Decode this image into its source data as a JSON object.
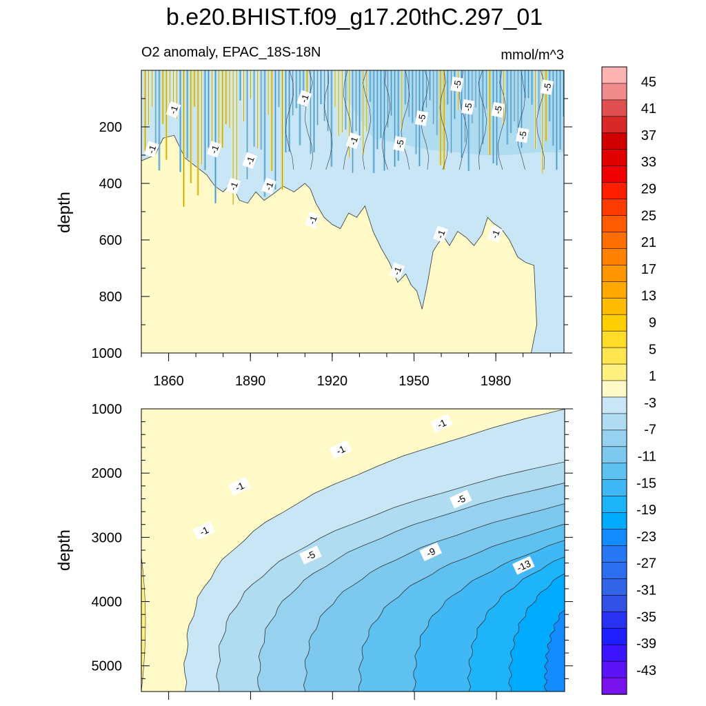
{
  "chart_data": {
    "type": "contour",
    "title": "b.e20.BHIST.f09_g17.20thC.297_01",
    "subtitle_left": "O2 anomaly, EPAC_18S-18N",
    "subtitle_right": "mmol/m^3",
    "colorbar": {
      "labels": [
        "45",
        "41",
        "37",
        "33",
        "29",
        "25",
        "21",
        "17",
        "13",
        "9",
        "5",
        "1",
        "-3",
        "-7",
        "-11",
        "-15",
        "-19",
        "-23",
        "-27",
        "-31",
        "-35",
        "-39",
        "-43"
      ],
      "colors": [
        "#ffb4b4",
        "#f08c8c",
        "#e05050",
        "#d82828",
        "#d00000",
        "#e00000",
        "#f00000",
        "#ff1e00",
        "#ff3c00",
        "#ff5a00",
        "#ff6e00",
        "#ff8200",
        "#ff9600",
        "#ffa800",
        "#ffbc00",
        "#ffce00",
        "#ffdc28",
        "#ffe650",
        "#fff080",
        "#fffac8",
        "#c8e6f5",
        "#b0dcf2",
        "#96d2f0",
        "#7cc8ee",
        "#5ec1f0",
        "#40b8f5",
        "#1eb4fa",
        "#00aaff",
        "#148cff",
        "#2878f5",
        "#2d6ef0",
        "#3264e6",
        "#3250e6",
        "#2832f0",
        "#1e1eff",
        "#3c14ff",
        "#5a14f5",
        "#7814eb"
      ]
    },
    "top_panel": {
      "ylabel": "depth",
      "y_ticks": [
        "200",
        "400",
        "600",
        "800",
        "1000"
      ],
      "x_ticks": [
        "1860",
        "1890",
        "1920",
        "1950",
        "1980"
      ],
      "ylim": [
        0,
        1000
      ],
      "xlim": [
        1850,
        2005
      ],
      "boundary_minus1": [
        [
          1850,
          320
        ],
        [
          1855,
          300
        ],
        [
          1858,
          240
        ],
        [
          1862,
          230
        ],
        [
          1866,
          310
        ],
        [
          1870,
          340
        ],
        [
          1874,
          370
        ],
        [
          1877,
          410
        ],
        [
          1880,
          430
        ],
        [
          1883,
          400
        ],
        [
          1886,
          460
        ],
        [
          1889,
          470
        ],
        [
          1892,
          430
        ],
        [
          1895,
          460
        ],
        [
          1898,
          440
        ],
        [
          1902,
          410
        ],
        [
          1906,
          430
        ],
        [
          1910,
          400
        ],
        [
          1912,
          420
        ],
        [
          1914,
          470
        ],
        [
          1917,
          520
        ],
        [
          1920,
          545
        ],
        [
          1923,
          560
        ],
        [
          1926,
          505
        ],
        [
          1929,
          520
        ],
        [
          1932,
          480
        ],
        [
          1935,
          570
        ],
        [
          1938,
          630
        ],
        [
          1941,
          680
        ],
        [
          1944,
          750
        ],
        [
          1947,
          720
        ],
        [
          1949,
          760
        ],
        [
          1951,
          780
        ],
        [
          1953,
          845
        ],
        [
          1955,
          750
        ],
        [
          1957,
          640
        ],
        [
          1959,
          610
        ],
        [
          1961,
          590
        ],
        [
          1963,
          620
        ],
        [
          1966,
          570
        ],
        [
          1969,
          590
        ],
        [
          1972,
          620
        ],
        [
          1975,
          580
        ],
        [
          1977,
          520
        ],
        [
          1979,
          540
        ],
        [
          1982,
          560
        ],
        [
          1985,
          600
        ],
        [
          1988,
          660
        ],
        [
          1991,
          680
        ],
        [
          1994,
          690
        ],
        [
          1995,
          900
        ],
        [
          1993,
          1000
        ]
      ],
      "boundary_minus5": [
        [
          1925,
          100
        ],
        [
          1935,
          240
        ],
        [
          1945,
          260
        ],
        [
          1955,
          280
        ],
        [
          1965,
          290
        ],
        [
          1975,
          300
        ],
        [
          1985,
          300
        ],
        [
          1995,
          290
        ],
        [
          2005,
          290
        ]
      ],
      "boundary_minus9": [
        [
          1975,
          130
        ],
        [
          1985,
          170
        ],
        [
          1995,
          170
        ],
        [
          2005,
          160
        ]
      ],
      "labels": [
        {
          "text": "-1",
          "x": 1862,
          "y": 140
        },
        {
          "text": "-1",
          "x": 1854,
          "y": 280
        },
        {
          "text": "-1",
          "x": 1877,
          "y": 280
        },
        {
          "text": "-1",
          "x": 1890,
          "y": 320
        },
        {
          "text": "-1",
          "x": 1884,
          "y": 410
        },
        {
          "text": "-1",
          "x": 1897,
          "y": 410
        },
        {
          "text": "-1",
          "x": 1910,
          "y": 100
        },
        {
          "text": "-1",
          "x": 1913,
          "y": 530
        },
        {
          "text": "-1",
          "x": 1928,
          "y": 250
        },
        {
          "text": "-1",
          "x": 1944,
          "y": 710
        },
        {
          "text": "-1",
          "x": 1960,
          "y": 580
        },
        {
          "text": "-1",
          "x": 1980,
          "y": 580
        },
        {
          "text": "-5",
          "x": 1966,
          "y": 50
        },
        {
          "text": "-5",
          "x": 1970,
          "y": 130
        },
        {
          "text": "-5",
          "x": 1953,
          "y": 170
        },
        {
          "text": "-5",
          "x": 1945,
          "y": 260
        },
        {
          "text": "-5",
          "x": 1981,
          "y": 140
        },
        {
          "text": "-5",
          "x": 1990,
          "y": 230
        },
        {
          "text": "-5",
          "x": 1999,
          "y": 60
        }
      ]
    },
    "bottom_panel": {
      "ylabel": "depth",
      "y_ticks": [
        "1000",
        "2000",
        "3000",
        "4000",
        "5000"
      ],
      "ylim": [
        1000,
        5400
      ],
      "xlim": [
        1850,
        2005
      ],
      "contour_levels": [
        -1,
        -3,
        -5,
        -7,
        -9,
        -11,
        -13,
        -15
      ],
      "labels": [
        {
          "text": "-1",
          "x": 1960,
          "y": 1230
        },
        {
          "text": "-1",
          "x": 1923,
          "y": 1640
        },
        {
          "text": "-1",
          "x": 1886,
          "y": 2210
        },
        {
          "text": "-1",
          "x": 1873,
          "y": 2900
        },
        {
          "text": "-5",
          "x": 1967,
          "y": 2410
        },
        {
          "text": "-5",
          "x": 1912,
          "y": 3280
        },
        {
          "text": "-9",
          "x": 1956,
          "y": 3230
        },
        {
          "text": "-13",
          "x": 1990,
          "y": 3440
        }
      ]
    }
  }
}
